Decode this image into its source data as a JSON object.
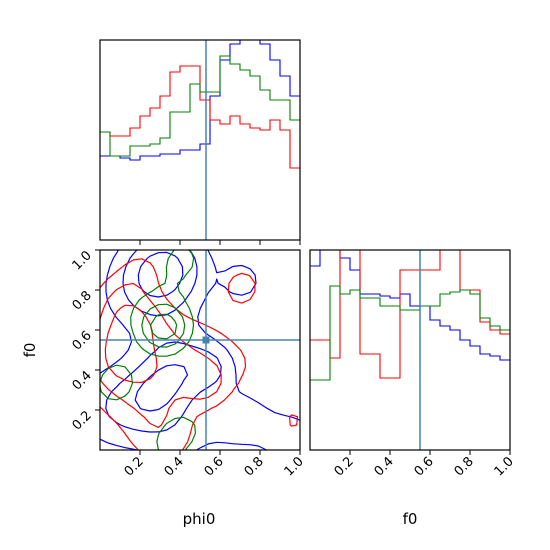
{
  "chart_data": {
    "type": "corner",
    "parameters": [
      "phi0",
      "f0"
    ],
    "truth": {
      "phi0": 0.53,
      "f0": 0.55
    },
    "truth_color": "#4682b4",
    "series_colors": [
      "#0000ff",
      "#ff0000",
      "#008000"
    ],
    "ticks": {
      "phi0": {
        "values": [
          0.2,
          0.4,
          0.6,
          0.8,
          1.0
        ],
        "labels": [
          "0.2",
          "0.4",
          "0.6",
          "0.8",
          "1.0"
        ]
      },
      "f0": {
        "values": [
          0.2,
          0.4,
          0.6,
          0.8,
          1.0
        ],
        "labels": [
          "0.2",
          "0.4",
          "0.6",
          "0.8",
          "1.0"
        ]
      }
    },
    "panels": [
      {
        "id": "hist-phi0",
        "kind": "histogram",
        "param": "phi0",
        "xlim": [
          0.0,
          1.0
        ],
        "ylim": [
          0,
          1
        ],
        "bins": 20,
        "series": [
          {
            "color": "#0000ff",
            "values": [
              0.42,
              0.42,
              0.41,
              0.4,
              0.42,
              0.42,
              0.43,
              0.43,
              0.45,
              0.45,
              0.48,
              0.72,
              0.9,
              0.98,
              1.0,
              1.0,
              0.98,
              0.9,
              0.82,
              0.72
            ]
          },
          {
            "color": "#ff0000",
            "values": [
              0.54,
              0.52,
              0.52,
              0.56,
              0.62,
              0.66,
              0.72,
              0.84,
              0.87,
              0.87,
              0.7,
              0.6,
              0.58,
              0.62,
              0.58,
              0.56,
              0.55,
              0.6,
              0.55,
              0.36
            ]
          },
          {
            "color": "#008000",
            "values": [
              0.54,
              0.42,
              0.42,
              0.47,
              0.47,
              0.48,
              0.51,
              0.64,
              0.64,
              0.78,
              0.74,
              0.74,
              0.92,
              0.88,
              0.85,
              0.82,
              0.75,
              0.7,
              0.7,
              0.6
            ]
          }
        ]
      },
      {
        "id": "contour-phi0-f0",
        "kind": "contour",
        "xparam": "phi0",
        "yparam": "f0",
        "xlim": [
          0.0,
          1.0
        ],
        "ylim": [
          0.0,
          1.0
        ],
        "series": [
          {
            "color": "#0000ff",
            "seed": 11
          },
          {
            "color": "#ff0000",
            "seed": 23
          },
          {
            "color": "#008000",
            "seed": 37
          }
        ]
      },
      {
        "id": "hist-f0",
        "kind": "histogram",
        "param": "f0",
        "xlim": [
          0.0,
          1.0
        ],
        "ylim": [
          0,
          1
        ],
        "bins": 20,
        "series": [
          {
            "color": "#0000ff",
            "values": [
              0.92,
              1.0,
              1.0,
              0.96,
              0.9,
              0.78,
              0.78,
              0.77,
              0.76,
              0.78,
              0.72,
              0.72,
              0.65,
              0.62,
              0.6,
              0.55,
              0.52,
              0.48,
              0.47,
              0.45
            ]
          },
          {
            "color": "#ff0000",
            "values": [
              0.55,
              0.55,
              0.46,
              1.0,
              1.0,
              0.48,
              0.48,
              0.36,
              0.36,
              0.9,
              0.9,
              0.9,
              0.9,
              1.0,
              1.0,
              0.8,
              0.8,
              0.64,
              0.6,
              0.58
            ]
          },
          {
            "color": "#008000",
            "values": [
              0.35,
              0.35,
              0.82,
              0.78,
              0.8,
              0.76,
              0.76,
              0.72,
              0.72,
              0.7,
              0.7,
              0.72,
              0.72,
              0.78,
              0.79,
              0.8,
              0.78,
              0.66,
              0.62,
              0.6
            ]
          }
        ]
      }
    ],
    "axis_labels": {
      "phi0": "phi0",
      "f0": "f0"
    }
  }
}
